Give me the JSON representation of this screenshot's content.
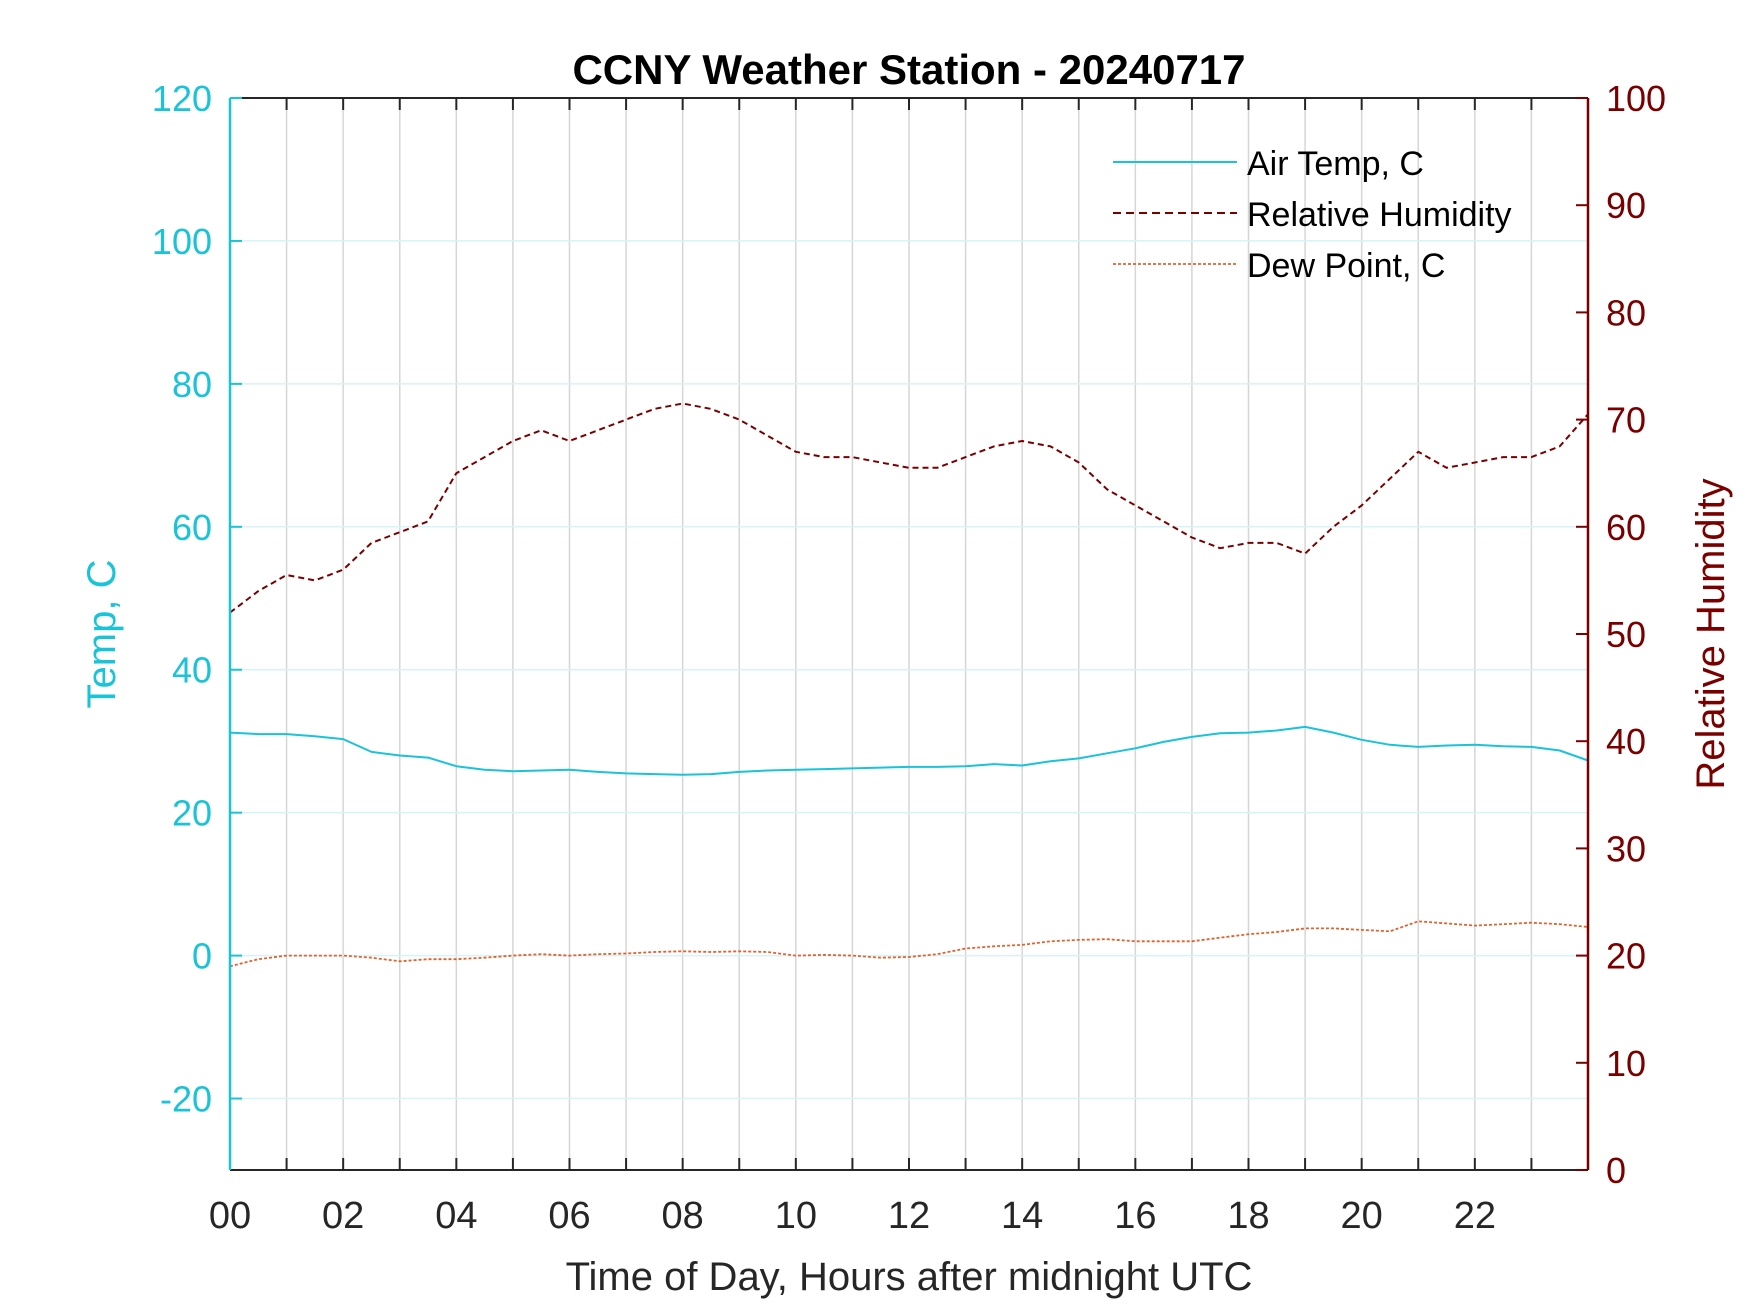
{
  "chart_data": {
    "type": "line",
    "title": "CCNY Weather Station - 20240717",
    "xlabel": "Time of Day, Hours after midnight UTC",
    "ylabel_left": "Temp, C",
    "ylabel_right": "Relative Humidity",
    "xlim": [
      0,
      24
    ],
    "ylim_left": [
      -30,
      120
    ],
    "ylim_right": [
      0,
      100
    ],
    "x_ticks": [
      0,
      2,
      4,
      6,
      8,
      10,
      12,
      14,
      16,
      18,
      20,
      22
    ],
    "x_tick_labels": [
      "00",
      "02",
      "04",
      "06",
      "08",
      "10",
      "12",
      "14",
      "16",
      "18",
      "20",
      "22"
    ],
    "y_left_ticks": [
      -20,
      0,
      20,
      40,
      60,
      80,
      100,
      120
    ],
    "y_left_tick_labels": [
      "-20",
      "0",
      "20",
      "40",
      "60",
      "80",
      "100",
      "120"
    ],
    "y_right_ticks": [
      0,
      10,
      20,
      30,
      40,
      50,
      60,
      70,
      80,
      90,
      100
    ],
    "y_right_tick_labels": [
      "0",
      "10",
      "20",
      "30",
      "40",
      "50",
      "60",
      "70",
      "80",
      "90",
      "100"
    ],
    "grid": true,
    "legend_position": "top-right",
    "colors": {
      "left_axis": "#19c3d8",
      "right_axis": "#7a0000",
      "dew": "#e0622e",
      "grid_y": "#d6f3f8",
      "grid_x": "#d6d6d6"
    },
    "series": [
      {
        "name": "Air Temp, C",
        "axis": "left",
        "style": "solid",
        "color": "#19c3d8",
        "x": [
          0,
          0.5,
          1,
          1.5,
          2,
          2.5,
          3,
          3.5,
          4,
          4.5,
          5,
          5.5,
          6,
          6.5,
          7,
          7.5,
          8,
          8.5,
          9,
          9.5,
          10,
          10.5,
          11,
          11.5,
          12,
          12.5,
          13,
          13.5,
          14,
          14.5,
          15,
          15.5,
          16,
          16.5,
          17,
          17.5,
          18,
          18.5,
          19,
          19.5,
          20,
          20.5,
          21,
          21.5,
          22,
          22.5,
          23,
          23.5,
          24
        ],
        "y": [
          31.2,
          31,
          31,
          30.7,
          30.3,
          28.5,
          28,
          27.7,
          26.5,
          26,
          25.8,
          25.9,
          26,
          25.7,
          25.5,
          25.4,
          25.3,
          25.4,
          25.7,
          25.9,
          26,
          26.1,
          26.2,
          26.3,
          26.4,
          26.4,
          26.5,
          26.8,
          26.6,
          27.2,
          27.6,
          28.3,
          29,
          29.9,
          30.6,
          31.1,
          31.2,
          31.5,
          32,
          31.2,
          30.2,
          29.5,
          29.2,
          29.4,
          29.5,
          29.3,
          29.2,
          28.7,
          27.3
        ]
      },
      {
        "name": "Relative Humidity",
        "axis": "right",
        "style": "dashed",
        "color": "#7a0000",
        "x": [
          0,
          0.5,
          1,
          1.5,
          2,
          2.5,
          3,
          3.5,
          4,
          4.5,
          5,
          5.5,
          6,
          6.5,
          7,
          7.5,
          8,
          8.5,
          9,
          9.5,
          10,
          10.5,
          11,
          11.5,
          12,
          12.5,
          13,
          13.5,
          14,
          14.5,
          15,
          15.5,
          16,
          16.5,
          17,
          17.5,
          18,
          18.5,
          19,
          19.5,
          20,
          20.5,
          21,
          21.5,
          22,
          22.5,
          23,
          23.5,
          24
        ],
        "y": [
          52,
          54,
          55.5,
          55,
          56,
          58.5,
          59.5,
          60.5,
          65,
          66.5,
          68,
          69,
          68,
          69,
          70,
          71,
          71.5,
          71,
          70,
          68.5,
          67,
          66.5,
          66.5,
          66,
          65.5,
          65.5,
          66.5,
          67.5,
          68,
          67.5,
          66,
          63.5,
          62,
          60.5,
          59,
          58,
          58.5,
          58.5,
          57.5,
          60,
          62,
          64.5,
          67,
          65.5,
          66,
          66.5,
          66.5,
          67.5,
          70.5
        ]
      },
      {
        "name": "Dew Point, C",
        "axis": "left",
        "style": "dotted",
        "color": "#e0622e",
        "x": [
          0,
          0.5,
          1,
          1.5,
          2,
          2.5,
          3,
          3.5,
          4,
          4.5,
          5,
          5.5,
          6,
          6.5,
          7,
          7.5,
          8,
          8.5,
          9,
          9.5,
          10,
          10.5,
          11,
          11.5,
          12,
          12.5,
          13,
          13.5,
          14,
          14.5,
          15,
          15.5,
          16,
          16.5,
          17,
          17.5,
          18,
          18.5,
          19,
          19.5,
          20,
          20.5,
          21,
          21.5,
          22,
          22.5,
          23,
          23.5,
          24
        ],
        "y": [
          -1.5,
          -0.5,
          0,
          0,
          0,
          -0.3,
          -0.8,
          -0.5,
          -0.5,
          -0.3,
          0,
          0.2,
          0,
          0.2,
          0.3,
          0.5,
          0.6,
          0.5,
          0.6,
          0.5,
          0,
          0.1,
          0,
          -0.3,
          -0.2,
          0.2,
          1,
          1.3,
          1.5,
          2,
          2.2,
          2.3,
          2,
          2,
          2,
          2.5,
          3,
          3.3,
          3.8,
          3.8,
          3.6,
          3.4,
          4.8,
          4.5,
          4.2,
          4.4,
          4.6,
          4.4,
          4
        ]
      }
    ]
  }
}
